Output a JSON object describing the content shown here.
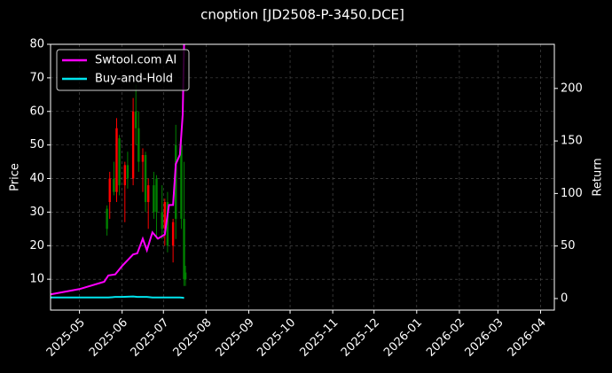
{
  "chart_data": {
    "type": "candlestick",
    "title": "cnoption [JD2508-P-3450.DCE]",
    "ylabel": "Price",
    "y2label": "Return",
    "xlim": [
      "2025-04-10",
      "2026-04-11"
    ],
    "xticks": [
      {
        "value": "2025-05-01",
        "label": "2025-05"
      },
      {
        "value": "2025-06-01",
        "label": "2025-06"
      },
      {
        "value": "2025-07-01",
        "label": "2025-07"
      },
      {
        "value": "2025-08-01",
        "label": "2025-08"
      },
      {
        "value": "2025-09-01",
        "label": "2025-09"
      },
      {
        "value": "2025-10-01",
        "label": "2025-10"
      },
      {
        "value": "2025-11-01",
        "label": "2025-11"
      },
      {
        "value": "2025-12-01",
        "label": "2025-12"
      },
      {
        "value": "2026-01-01",
        "label": "2026-01"
      },
      {
        "value": "2026-02-01",
        "label": "2026-02"
      },
      {
        "value": "2026-03-01",
        "label": "2026-03"
      },
      {
        "value": "2026-04-01",
        "label": "2026-04"
      }
    ],
    "ylim": [
      0.8,
      80
    ],
    "yticks": [
      10,
      20,
      30,
      40,
      50,
      60,
      70,
      80
    ],
    "y2lim": [
      -11,
      242
    ],
    "y2ticks": [
      0,
      50,
      100,
      150,
      200
    ],
    "grid": true,
    "legend": "upper left",
    "up_color": "#ff0000",
    "down_color": "#008000",
    "candles": {
      "dates": [
        "2025-05-21",
        "2025-05-23",
        "2025-05-26",
        "2025-05-28",
        "2025-05-30",
        "2025-06-03",
        "2025-06-05",
        "2025-06-09",
        "2025-06-11",
        "2025-06-13",
        "2025-06-16",
        "2025-06-18",
        "2025-06-20",
        "2025-06-24",
        "2025-06-26",
        "2025-06-30",
        "2025-07-02",
        "2025-07-04",
        "2025-07-08",
        "2025-07-10",
        "2025-07-14",
        "2025-07-16",
        "2025-07-17"
      ],
      "open": [
        31,
        33,
        40,
        36,
        52,
        38,
        44,
        40,
        60,
        55,
        45,
        47,
        33,
        38,
        40,
        30,
        25,
        33,
        20,
        50,
        50,
        28,
        12
      ],
      "high": [
        32,
        42,
        45,
        58,
        53,
        45,
        48,
        64,
        68,
        60,
        49,
        48,
        40,
        42,
        41,
        38,
        34,
        36,
        28,
        56,
        52,
        45,
        14
      ],
      "low": [
        23,
        28,
        35,
        33,
        35,
        27,
        37,
        38,
        50,
        42,
        36,
        30,
        25,
        28,
        22,
        22,
        20,
        18,
        15,
        22,
        25,
        8,
        8
      ],
      "close": [
        25,
        40,
        36,
        55,
        38,
        44,
        40,
        60,
        55,
        45,
        47,
        33,
        38,
        30,
        30,
        25,
        33,
        20,
        27,
        28,
        28,
        10,
        10
      ]
    },
    "x": [
      "2025-04-10",
      "2025-05-01",
      "2025-05-19",
      "2025-05-22",
      "2025-05-27",
      "2025-06-01",
      "2025-06-09",
      "2025-06-12",
      "2025-06-16",
      "2025-06-19",
      "2025-06-23",
      "2025-06-27",
      "2025-07-02",
      "2025-07-05",
      "2025-07-08",
      "2025-07-10",
      "2025-07-13",
      "2025-07-15",
      "2025-07-16"
    ],
    "series": [
      {
        "name": "Swtool.com AI",
        "color": "#ff00ff",
        "axis": "y2",
        "values": [
          4,
          9,
          16,
          22,
          23,
          31,
          42,
          43,
          57,
          46,
          63,
          57,
          61,
          89,
          89,
          128,
          137,
          175,
          242
        ]
      },
      {
        "name": "Buy-and-Hold",
        "color": "#00e5ee",
        "axis": "y2",
        "values": [
          1,
          1,
          1,
          1,
          1.5,
          1.5,
          2,
          1.5,
          1.5,
          1.5,
          1,
          1,
          1,
          1,
          1,
          1,
          1,
          0.8,
          0.5
        ]
      }
    ]
  }
}
